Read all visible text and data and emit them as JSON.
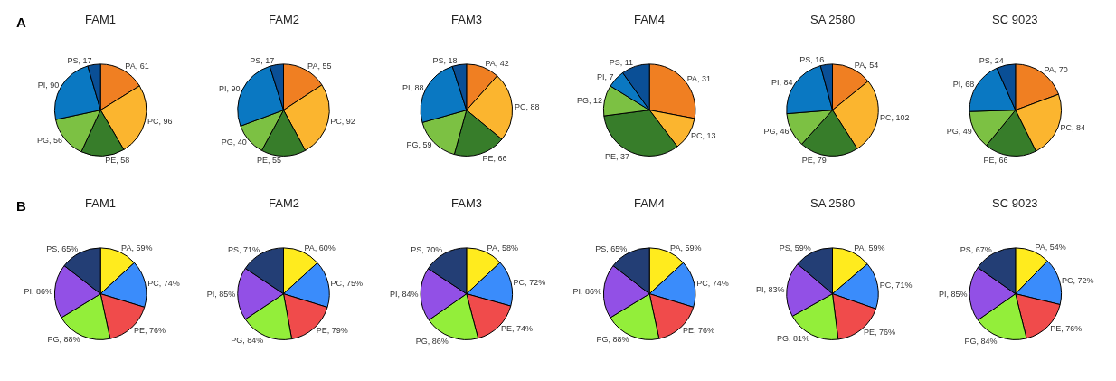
{
  "chart_data": [
    {
      "type": "pie",
      "title": "FAM1",
      "annotations": [
        "A"
      ],
      "categories": [
        "PA",
        "PC",
        "PE",
        "PG",
        "PI",
        "PS"
      ],
      "values": [
        61,
        96,
        58,
        56,
        90,
        17
      ],
      "value_labels": [
        "61",
        "96",
        "58",
        "56",
        "90",
        "17"
      ],
      "colors": [
        "#f07f22",
        "#fbb52f",
        "#377d2a",
        "#7cc143",
        "#0a78c2",
        "#0a4f96"
      ],
      "legend": false
    },
    {
      "type": "pie",
      "title": "FAM2",
      "categories": [
        "PA",
        "PC",
        "PE",
        "PG",
        "PI",
        "PS"
      ],
      "values": [
        55,
        92,
        55,
        40,
        90,
        17
      ],
      "value_labels": [
        "55",
        "92",
        "55",
        "40",
        "90",
        "17"
      ],
      "colors": [
        "#f07f22",
        "#fbb52f",
        "#377d2a",
        "#7cc143",
        "#0a78c2",
        "#0a4f96"
      ],
      "legend": false
    },
    {
      "type": "pie",
      "title": "FAM3",
      "categories": [
        "PA",
        "PC",
        "PE",
        "PG",
        "PI",
        "PS"
      ],
      "values": [
        42,
        88,
        66,
        59,
        88,
        18
      ],
      "value_labels": [
        "42",
        "88",
        "66",
        "59",
        "88",
        "18"
      ],
      "colors": [
        "#f07f22",
        "#fbb52f",
        "#377d2a",
        "#7cc143",
        "#0a78c2",
        "#0a4f96"
      ],
      "legend": false
    },
    {
      "type": "pie",
      "title": "FAM4",
      "categories": [
        "PA",
        "PC",
        "PE",
        "PG",
        "PI",
        "PS"
      ],
      "values": [
        31,
        13,
        37,
        12,
        7,
        11
      ],
      "value_labels": [
        "31",
        "13",
        "37",
        "12",
        "7",
        "11"
      ],
      "colors": [
        "#f07f22",
        "#fbb52f",
        "#377d2a",
        "#7cc143",
        "#0a78c2",
        "#0a4f96"
      ],
      "legend": false
    },
    {
      "type": "pie",
      "title": "SA 2580",
      "categories": [
        "PA",
        "PC",
        "PE",
        "PG",
        "PI",
        "PS"
      ],
      "values": [
        54,
        102,
        79,
        46,
        84,
        16
      ],
      "value_labels": [
        "54",
        "102",
        "79",
        "46",
        "84",
        "16"
      ],
      "colors": [
        "#f07f22",
        "#fbb52f",
        "#377d2a",
        "#7cc143",
        "#0a78c2",
        "#0a4f96"
      ],
      "legend": false
    },
    {
      "type": "pie",
      "title": "SC 9023",
      "categories": [
        "PA",
        "PC",
        "PE",
        "PG",
        "PI",
        "PS"
      ],
      "values": [
        70,
        84,
        66,
        49,
        68,
        24
      ],
      "value_labels": [
        "70",
        "84",
        "66",
        "49",
        "68",
        "24"
      ],
      "colors": [
        "#f07f22",
        "#fbb52f",
        "#377d2a",
        "#7cc143",
        "#0a78c2",
        "#0a4f96"
      ],
      "legend": false
    },
    {
      "type": "pie",
      "title": "FAM1",
      "annotations": [
        "B"
      ],
      "categories": [
        "PA",
        "PC",
        "PE",
        "PG",
        "PI",
        "PS"
      ],
      "values": [
        59,
        74,
        76,
        88,
        86,
        65
      ],
      "value_labels": [
        "59%",
        "74%",
        "76%",
        "88%",
        "86%",
        "65%"
      ],
      "colors": [
        "#ffeb1e",
        "#3a8cfb",
        "#f04b4b",
        "#93ee3a",
        "#9250e6",
        "#233e75"
      ],
      "legend": false
    },
    {
      "type": "pie",
      "title": "FAM2",
      "categories": [
        "PA",
        "PC",
        "PE",
        "PG",
        "PI",
        "PS"
      ],
      "values": [
        60,
        75,
        79,
        84,
        85,
        71
      ],
      "value_labels": [
        "60%",
        "75%",
        "79%",
        "84%",
        "85%",
        "71%"
      ],
      "colors": [
        "#ffeb1e",
        "#3a8cfb",
        "#f04b4b",
        "#93ee3a",
        "#9250e6",
        "#233e75"
      ],
      "legend": false
    },
    {
      "type": "pie",
      "title": "FAM3",
      "categories": [
        "PA",
        "PC",
        "PE",
        "PG",
        "PI",
        "PS"
      ],
      "values": [
        58,
        72,
        74,
        86,
        84,
        70
      ],
      "value_labels": [
        "58%",
        "72%",
        "74%",
        "86%",
        "84%",
        "70%"
      ],
      "colors": [
        "#ffeb1e",
        "#3a8cfb",
        "#f04b4b",
        "#93ee3a",
        "#9250e6",
        "#233e75"
      ],
      "legend": false
    },
    {
      "type": "pie",
      "title": "FAM4",
      "categories": [
        "PA",
        "PC",
        "PE",
        "PG",
        "PI",
        "PS"
      ],
      "values": [
        59,
        74,
        76,
        88,
        86,
        65
      ],
      "value_labels": [
        "59%",
        "74%",
        "76%",
        "88%",
        "86%",
        "65%"
      ],
      "colors": [
        "#ffeb1e",
        "#3a8cfb",
        "#f04b4b",
        "#93ee3a",
        "#9250e6",
        "#233e75"
      ],
      "legend": false
    },
    {
      "type": "pie",
      "title": "SA 2580",
      "categories": [
        "PA",
        "PC",
        "PE",
        "PG",
        "PI",
        "PS"
      ],
      "values": [
        59,
        71,
        76,
        81,
        83,
        59
      ],
      "value_labels": [
        "59%",
        "71%",
        "76%",
        "81%",
        "83%",
        "59%"
      ],
      "colors": [
        "#ffeb1e",
        "#3a8cfb",
        "#f04b4b",
        "#93ee3a",
        "#9250e6",
        "#233e75"
      ],
      "legend": false
    },
    {
      "type": "pie",
      "title": "SC 9023",
      "categories": [
        "PA",
        "PC",
        "PE",
        "PG",
        "PI",
        "PS"
      ],
      "values": [
        54,
        72,
        76,
        84,
        85,
        67
      ],
      "value_labels": [
        "54%",
        "72%",
        "76%",
        "84%",
        "85%",
        "67%"
      ],
      "colors": [
        "#ffeb1e",
        "#3a8cfb",
        "#f04b4b",
        "#93ee3a",
        "#9250e6",
        "#233e75"
      ],
      "legend": false
    }
  ]
}
